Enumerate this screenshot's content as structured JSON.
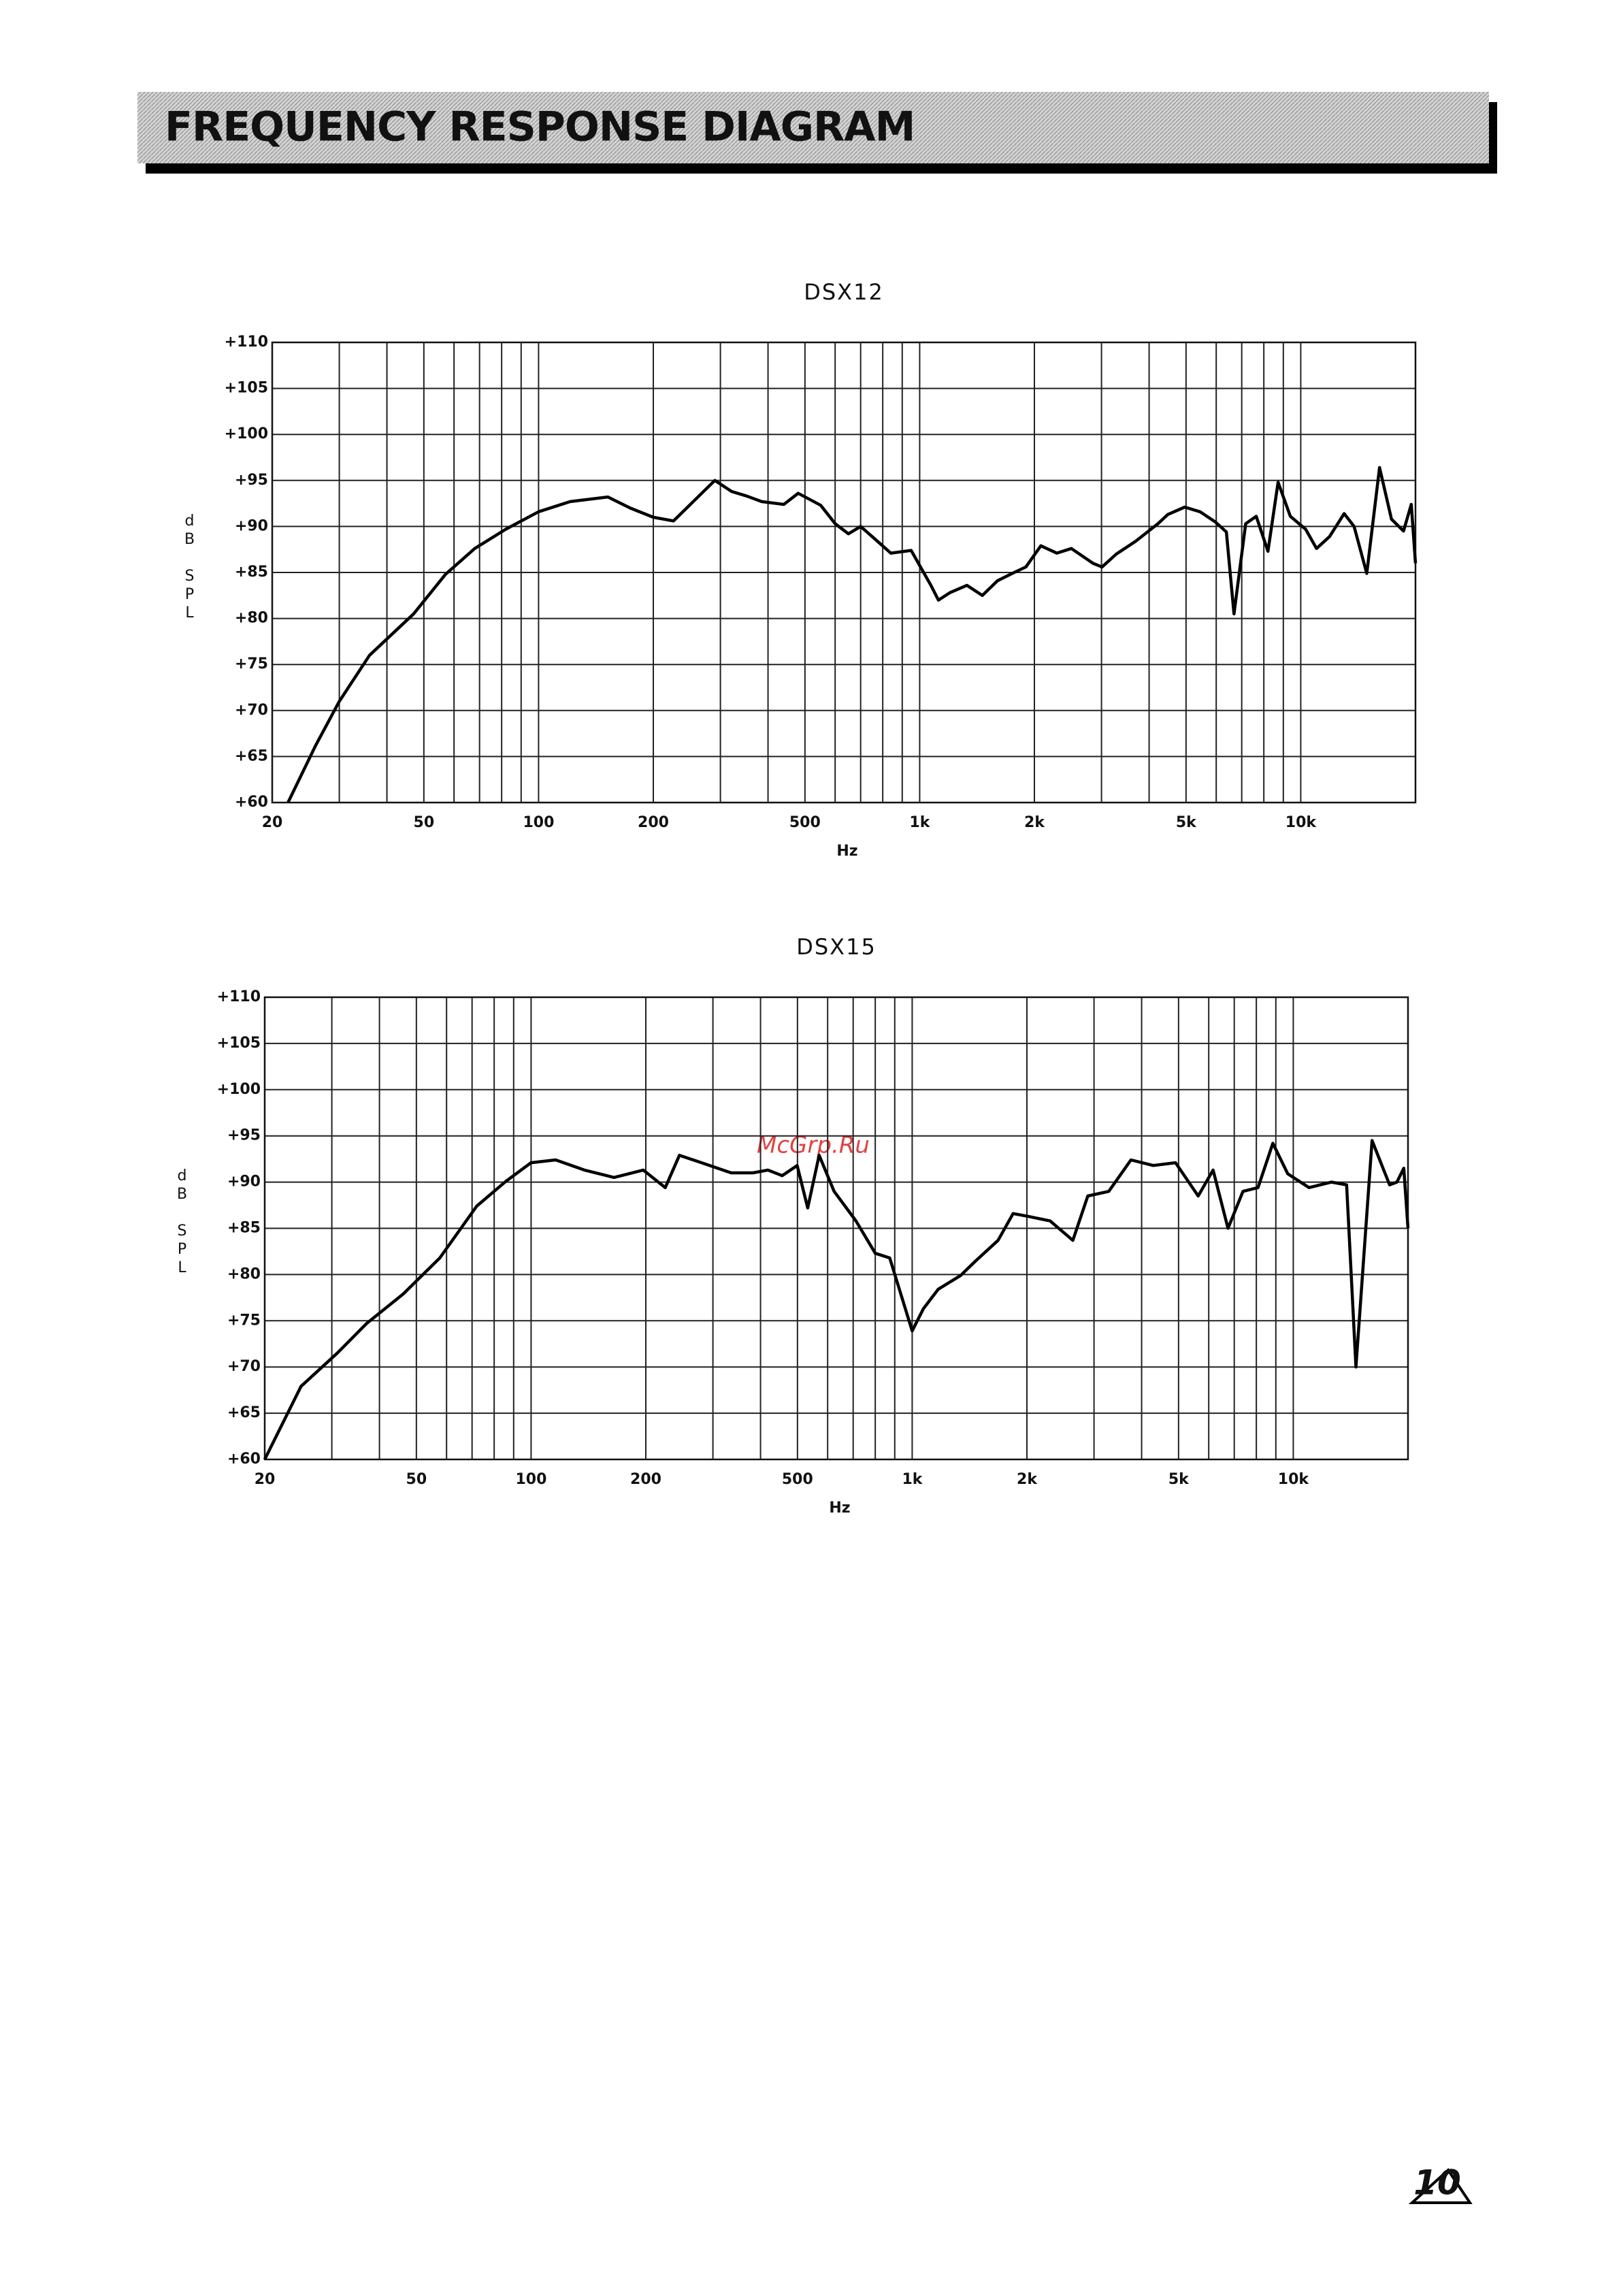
{
  "header": {
    "title": "FREQUENCY RESPONSE DIAGRAM"
  },
  "watermark": "McGrp.Ru",
  "page_number": "10",
  "chart_data": [
    {
      "type": "line",
      "title": "DSX12",
      "xlabel": "Hz",
      "ylabel": "dB SPL",
      "log_x": true,
      "grid": true,
      "color": "#000000",
      "xlim": [
        20,
        20000
      ],
      "ylim": [
        60,
        110
      ],
      "xticks": [
        20,
        50,
        100,
        200,
        500,
        {
          "value": 1000,
          "label": "1k"
        },
        {
          "value": 2000,
          "label": "2k"
        },
        {
          "value": 5000,
          "label": "5k"
        },
        {
          "value": 10000,
          "label": "10k"
        }
      ],
      "xgrid": [
        20,
        30,
        40,
        50,
        60,
        70,
        80,
        90,
        100,
        200,
        300,
        400,
        500,
        600,
        700,
        800,
        900,
        1000,
        2000,
        3000,
        4000,
        5000,
        6000,
        7000,
        8000,
        9000,
        10000,
        20000
      ],
      "yticks": [
        {
          "value": 60,
          "label": "+60"
        },
        {
          "value": 65,
          "label": "+65"
        },
        {
          "value": 70,
          "label": "+70"
        },
        {
          "value": 75,
          "label": "+75"
        },
        {
          "value": 80,
          "label": "+80"
        },
        {
          "value": 85,
          "label": "+85"
        },
        {
          "value": 90,
          "label": "+90"
        },
        {
          "value": 95,
          "label": "+95"
        },
        {
          "value": 100,
          "label": "+100"
        },
        {
          "value": 105,
          "label": "+105"
        },
        {
          "value": 110,
          "label": "+110"
        }
      ],
      "x": [
        22,
        26,
        30,
        36,
        47,
        57,
        68,
        82,
        100,
        121,
        152,
        174,
        200,
        226,
        290,
        321,
        352,
        385,
        440,
        480,
        550,
        600,
        650,
        700,
        760,
        840,
        950,
        1070,
        1120,
        1200,
        1330,
        1460,
        1600,
        1750,
        1900,
        2080,
        2290,
        2500,
        2850,
        3010,
        3280,
        3690,
        4220,
        4480,
        4960,
        5440,
        5960,
        6380,
        6680,
        7170,
        7640,
        8200,
        8720,
        9390,
        10300,
        11000,
        11900,
        13000,
        13800,
        14900,
        16100,
        17300,
        18600,
        19500,
        20000
      ],
      "y": [
        60,
        66.2,
        71,
        76,
        80.5,
        84.8,
        87.6,
        89.7,
        91.6,
        92.7,
        93.2,
        92,
        91,
        90.6,
        95,
        93.8,
        93.3,
        92.7,
        92.4,
        93.6,
        92.3,
        90.3,
        89.2,
        90,
        88.7,
        87.1,
        87.4,
        83.6,
        82,
        82.8,
        83.6,
        82.5,
        84.1,
        84.9,
        85.6,
        87.9,
        87.1,
        87.6,
        86,
        85.6,
        87,
        88.4,
        90.3,
        91.3,
        92.1,
        91.6,
        90.5,
        89.4,
        80.5,
        90.3,
        91.1,
        87.3,
        94.8,
        91.1,
        89.7,
        87.6,
        88.9,
        91.4,
        90,
        84.9,
        96.4,
        90.8,
        89.5,
        92.4,
        86
      ]
    },
    {
      "type": "line",
      "title": "DSX15",
      "xlabel": "Hz",
      "ylabel": "dB SPL",
      "log_x": true,
      "grid": true,
      "color": "#000000",
      "xlim": [
        20,
        20000
      ],
      "ylim": [
        60,
        110
      ],
      "xticks": [
        20,
        50,
        100,
        200,
        500,
        {
          "value": 1000,
          "label": "1k"
        },
        {
          "value": 2000,
          "label": "2k"
        },
        {
          "value": 5000,
          "label": "5k"
        },
        {
          "value": 10000,
          "label": "10k"
        }
      ],
      "xgrid": [
        20,
        30,
        40,
        50,
        60,
        70,
        80,
        90,
        100,
        200,
        300,
        400,
        500,
        600,
        700,
        800,
        900,
        1000,
        2000,
        3000,
        4000,
        5000,
        6000,
        7000,
        8000,
        9000,
        10000,
        20000
      ],
      "yticks": [
        {
          "value": 60,
          "label": "+60"
        },
        {
          "value": 65,
          "label": "+65"
        },
        {
          "value": 70,
          "label": "+70"
        },
        {
          "value": 75,
          "label": "+75"
        },
        {
          "value": 80,
          "label": "+80"
        },
        {
          "value": 85,
          "label": "+85"
        },
        {
          "value": 90,
          "label": "+90"
        },
        {
          "value": 95,
          "label": "+95"
        },
        {
          "value": 100,
          "label": "+100"
        },
        {
          "value": 105,
          "label": "+105"
        },
        {
          "value": 110,
          "label": "+110"
        }
      ],
      "x": [
        20,
        24.9,
        31,
        37,
        46.2,
        57.6,
        72,
        86,
        100,
        116,
        138,
        165,
        197,
        225,
        245,
        280,
        335,
        382,
        418,
        456,
        499,
        532,
        570,
        624,
        712,
        800,
        873,
        1000,
        1070,
        1170,
        1340,
        1470,
        1680,
        1840,
        2010,
        2300,
        2640,
        2890,
        3280,
        3750,
        4290,
        4910,
        5630,
        6160,
        6740,
        7380,
        8080,
        8840,
        9670,
        11000,
        12600,
        13800,
        14600,
        16100,
        17900,
        18700,
        19500,
        20000
      ],
      "y": [
        60,
        67.9,
        71.5,
        74.7,
        77.9,
        81.8,
        87.4,
        90.1,
        92.1,
        92.4,
        91.3,
        90.5,
        91.3,
        89.4,
        92.9,
        92.1,
        91,
        91,
        91.3,
        90.7,
        91.8,
        87.2,
        92.9,
        89,
        85.8,
        82.3,
        81.8,
        73.9,
        76.3,
        78.4,
        79.9,
        81.5,
        83.7,
        86.6,
        86.3,
        85.8,
        83.7,
        88.5,
        89,
        92.4,
        91.8,
        92.1,
        88.5,
        91.3,
        85,
        89,
        89.4,
        94.2,
        90.9,
        89.4,
        90,
        89.7,
        70,
        94.5,
        89.7,
        90,
        91.5,
        85
      ]
    }
  ]
}
